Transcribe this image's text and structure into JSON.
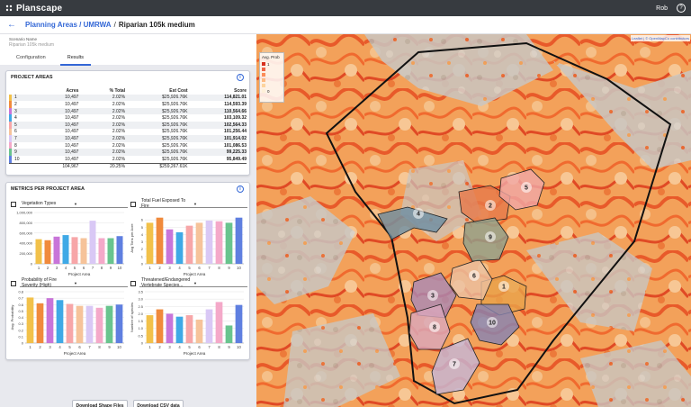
{
  "app": {
    "name": "Planscape",
    "user": "Rob",
    "help": "?"
  },
  "breadcrumb": {
    "link": "Planning Areas / UMRWA",
    "separator": "/",
    "current": "Riparian 105k medium"
  },
  "scenario": {
    "label": "Scenario Name",
    "name": "Riparian 105k medium"
  },
  "tabs": [
    "Configuration",
    "Results"
  ],
  "project_areas": {
    "title": "PROJECT AREAS",
    "headers": {
      "acres": "Acres",
      "pct": "% Total",
      "cost": "Est Cost",
      "score": "Score"
    },
    "rows": [
      {
        "id": "1",
        "acres": "10,497",
        "pct": "2.02%",
        "cost": "$25,926.76K",
        "score": "114,821.01",
        "color": "#f2c14a"
      },
      {
        "id": "2",
        "acres": "10,497",
        "pct": "2.02%",
        "cost": "$25,926.76K",
        "score": "114,593.39",
        "color": "#f08a3c"
      },
      {
        "id": "3",
        "acres": "10,497",
        "pct": "2.02%",
        "cost": "$25,926.76K",
        "score": "110,564.66",
        "color": "#c875d9"
      },
      {
        "id": "4",
        "acres": "10,497",
        "pct": "2.02%",
        "cost": "$25,926.76K",
        "score": "103,109.32",
        "color": "#3fa9e6"
      },
      {
        "id": "5",
        "acres": "10,497",
        "pct": "2.02%",
        "cost": "$25,926.76K",
        "score": "102,564.33",
        "color": "#f7a6a8"
      },
      {
        "id": "6",
        "acres": "10,497",
        "pct": "2.02%",
        "cost": "$25,926.76K",
        "score": "101,256.44",
        "color": "#f6c39a"
      },
      {
        "id": "7",
        "acres": "10,497",
        "pct": "2.02%",
        "cost": "$25,926.76K",
        "score": "101,914.02",
        "color": "#d9c8f5"
      },
      {
        "id": "8",
        "acres": "10,497",
        "pct": "2.02%",
        "cost": "$25,926.76K",
        "score": "101,086.53",
        "color": "#f4a9c9"
      },
      {
        "id": "9",
        "acres": "10,497",
        "pct": "2.02%",
        "cost": "$25,926.76K",
        "score": "99,225.33",
        "color": "#69c48e"
      },
      {
        "id": "10",
        "acres": "10,497",
        "pct": "2.02%",
        "cost": "$25,926.76K",
        "score": "95,849.49",
        "color": "#5f7fe0"
      }
    ],
    "total": {
      "acres": "104,967",
      "pct": "20.25%",
      "cost": "$259,267.61K"
    }
  },
  "metrics": {
    "title": "METRICS PER PROJECT AREA",
    "x_label": "Project Area",
    "bar_colors": [
      "#f2c14a",
      "#f08a3c",
      "#c875d9",
      "#3fa9e6",
      "#f7a6a8",
      "#f6c39a",
      "#d9c8f5",
      "#f4a9c9",
      "#69c48e",
      "#5f7fe0"
    ]
  },
  "chart_data": [
    {
      "type": "bar",
      "title": "Vegetation Types",
      "xlabel": "Project Area",
      "ylabel": "",
      "categories": [
        "1",
        "2",
        "3",
        "4",
        "5",
        "6",
        "7",
        "8",
        "9",
        "10"
      ],
      "values": [
        480000,
        460000,
        530000,
        560000,
        520000,
        500000,
        840000,
        500000,
        500000,
        540000
      ],
      "ylim": [
        0,
        1000000
      ],
      "yticks": [
        "0",
        "200,000",
        "400,000",
        "600,000",
        "800,000",
        "1,000,000"
      ]
    },
    {
      "type": "bar",
      "title": "Total Fuel Exposed To Fire",
      "xlabel": "Project Area",
      "ylabel": "Avg Tons per Acre",
      "categories": [
        "1",
        "2",
        "3",
        "4",
        "5",
        "6",
        "7",
        "8",
        "9",
        "10"
      ],
      "values": [
        5.6,
        6.3,
        4.7,
        4.3,
        5.2,
        5.6,
        5.9,
        5.8,
        5.6,
        6.3
      ],
      "ylim": [
        0,
        7
      ],
      "yticks": [
        "0",
        "1",
        "2",
        "3",
        "4",
        "5",
        "6"
      ]
    },
    {
      "type": "bar",
      "title": "Probability of Fire Severity (High)",
      "xlabel": "Project Area",
      "ylabel": "Avg. Probability",
      "categories": [
        "1",
        "2",
        "3",
        "4",
        "5",
        "6",
        "7",
        "8",
        "9",
        "10"
      ],
      "values": [
        0.71,
        0.62,
        0.7,
        0.67,
        0.61,
        0.58,
        0.58,
        0.55,
        0.58,
        0.6
      ],
      "ylim": [
        0,
        0.8
      ],
      "yticks": [
        "0",
        "0.1",
        "0.2",
        "0.3",
        "0.4",
        "0.5",
        "0.6",
        "0.7",
        "0.8"
      ]
    },
    {
      "type": "bar",
      "title": "Threatened/Endangered Vertebrate Species...",
      "xlabel": "Project Area",
      "ylabel": "Number of species",
      "categories": [
        "1",
        "2",
        "3",
        "4",
        "5",
        "6",
        "7",
        "8",
        "9",
        "10"
      ],
      "values": [
        1.9,
        2.3,
        2.0,
        1.8,
        1.9,
        1.6,
        2.3,
        2.8,
        1.2,
        2.6
      ],
      "ylim": [
        0,
        3.5
      ],
      "yticks": [
        "0",
        "0.5",
        "1.0",
        "1.5",
        "2.0",
        "2.5",
        "3.0",
        "3.5"
      ]
    }
  ],
  "buttons": {
    "shape": "Download Shape Files",
    "csv": "Download CSV data"
  },
  "map": {
    "legend_title": "Avg. Prob",
    "legend_items": [
      {
        "label": "1",
        "color": "#d7301f"
      },
      {
        "label": "",
        "color": "#ef6548"
      },
      {
        "label": "",
        "color": "#fc8d59"
      },
      {
        "label": "",
        "color": "#fdbb84"
      },
      {
        "label": "",
        "color": "#fdd49e"
      },
      {
        "label": "0",
        "color": "#fef0d9"
      }
    ],
    "attribution": "Leaflet | © OpenMapCo contributors",
    "area_labels": [
      "1",
      "2",
      "3",
      "4",
      "5",
      "6",
      "7",
      "8",
      "9",
      "10"
    ]
  }
}
